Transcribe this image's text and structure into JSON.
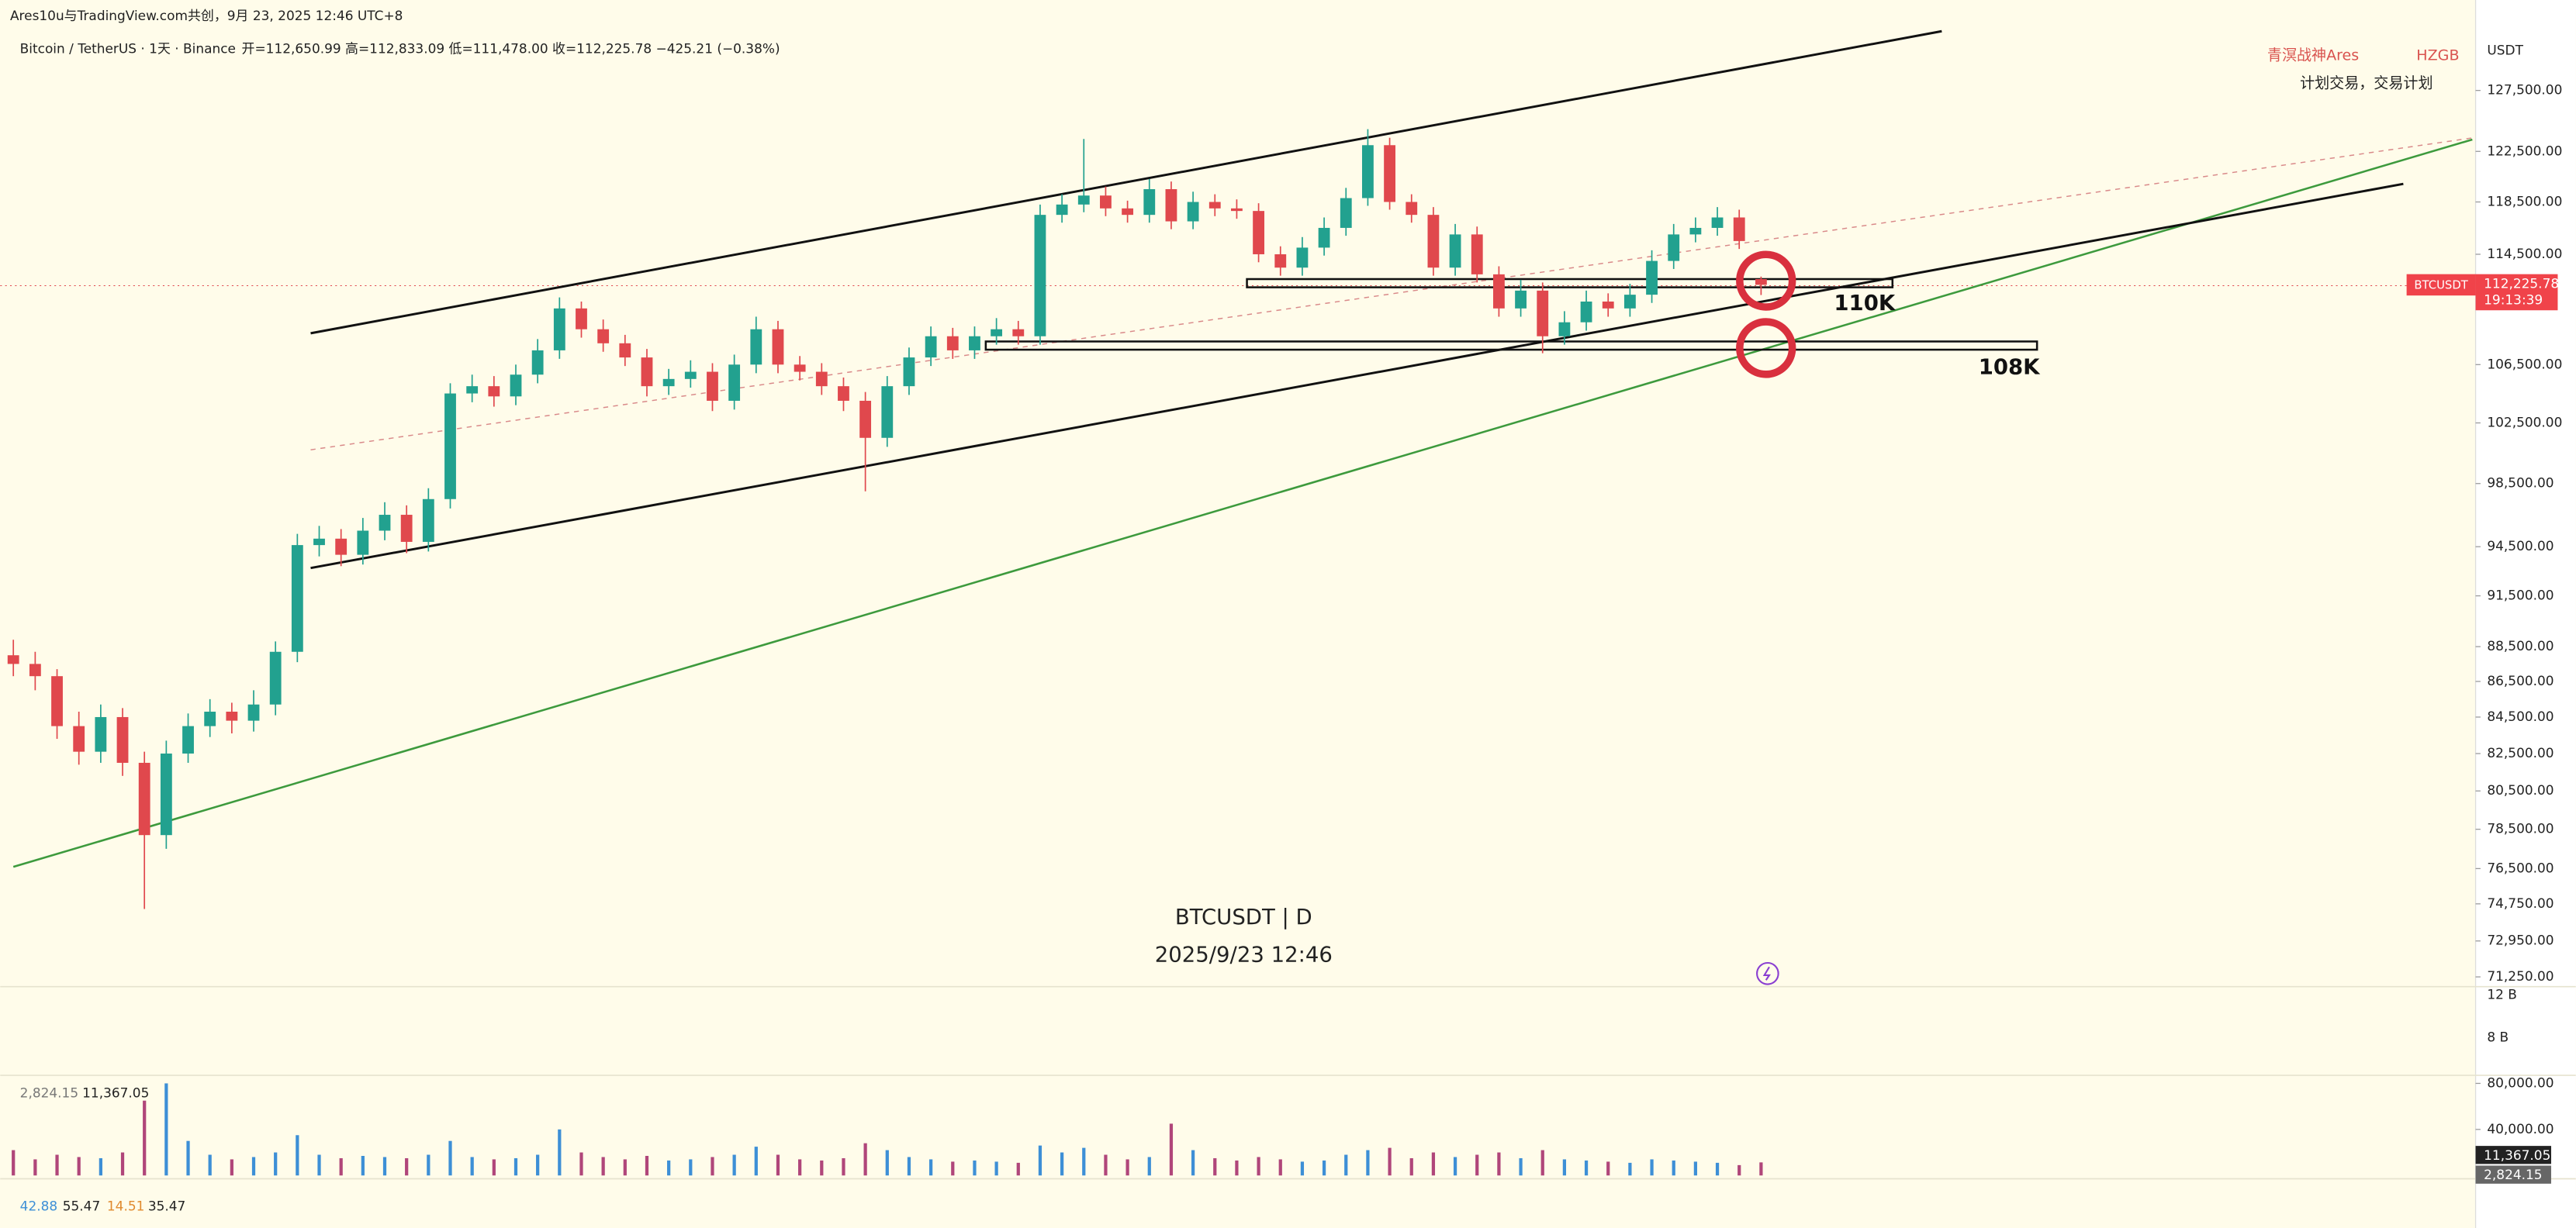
{
  "header": {
    "source": "Ares10u与TradingView.com共创，9月 23, 2025 12:46 UTC+8",
    "symbol_line": "Bitcoin / TetherUS · 1天 · Binance",
    "ohlc": "开=112,650.99 高=112,833.09 低=111,478.00 收=112,225.78 −425.21 (−0.38%)"
  },
  "branding": {
    "author": "青溟战神Ares",
    "tag": "HZGB",
    "motto": "计划交易，交易计划"
  },
  "watermark": {
    "symbol": "BTCUSDT | D",
    "time": "2025/9/23 12:46"
  },
  "price_axis": {
    "currency": "USDT",
    "tag_symbol": "BTCUSDT",
    "tag_price": "112,225.78",
    "tag_countdown": "19:13:39"
  },
  "chart_data": {
    "type": "candlestick",
    "log_scale": true,
    "up_color": "#22a18f",
    "down_color": "#e0484d",
    "annotations": [
      "110K",
      "108K"
    ],
    "ylim": [
      70870,
      132700
    ],
    "yticks": [
      {
        "value": 127500,
        "label": "127,500.00"
      },
      {
        "value": 122500,
        "label": "122,500.00"
      },
      {
        "value": 118500,
        "label": "118,500.00"
      },
      {
        "value": 114500,
        "label": "114,500.00"
      },
      {
        "value": 106500,
        "label": "106,500.00"
      },
      {
        "value": 102500,
        "label": "102,500.00"
      },
      {
        "value": 98500,
        "label": "98,500.00"
      },
      {
        "value": 94500,
        "label": "94,500.00"
      },
      {
        "value": 91500,
        "label": "91,500.00"
      },
      {
        "value": 88500,
        "label": "88,500.00"
      },
      {
        "value": 86500,
        "label": "86,500.00"
      },
      {
        "value": 84500,
        "label": "84,500.00"
      },
      {
        "value": 82500,
        "label": "82,500.00"
      },
      {
        "value": 80500,
        "label": "80,500.00"
      },
      {
        "value": 78500,
        "label": "78,500.00"
      },
      {
        "value": 76500,
        "label": "76,500.00"
      },
      {
        "value": 74750,
        "label": "74,750.00"
      },
      {
        "value": 72950,
        "label": "72,950.00"
      },
      {
        "value": 71250,
        "label": "71,250.00"
      }
    ],
    "candles": [
      [
        88000,
        88900,
        86800,
        87500
      ],
      [
        87500,
        88200,
        86000,
        86800
      ],
      [
        86800,
        87200,
        83300,
        84000
      ],
      [
        84000,
        84800,
        81900,
        82600
      ],
      [
        82600,
        85200,
        82000,
        84500
      ],
      [
        84500,
        85000,
        81300,
        82000
      ],
      [
        82000,
        82600,
        74500,
        78200
      ],
      [
        78200,
        83200,
        77500,
        82500
      ],
      [
        82500,
        84700,
        82000,
        84000
      ],
      [
        84000,
        85500,
        83400,
        84800
      ],
      [
        84800,
        85300,
        83600,
        84300
      ],
      [
        84300,
        86000,
        83700,
        85200
      ],
      [
        85200,
        88800,
        84600,
        88200
      ],
      [
        88200,
        95300,
        87600,
        94600
      ],
      [
        94600,
        95800,
        93900,
        95000
      ],
      [
        95000,
        95600,
        93300,
        94000
      ],
      [
        94000,
        96300,
        93400,
        95500
      ],
      [
        95500,
        97300,
        94900,
        96500
      ],
      [
        96500,
        97100,
        94100,
        94800
      ],
      [
        94800,
        98200,
        94200,
        97500
      ],
      [
        97500,
        105200,
        96900,
        104500
      ],
      [
        104500,
        105800,
        103900,
        105000
      ],
      [
        105000,
        105700,
        103600,
        104300
      ],
      [
        104300,
        106500,
        103700,
        105800
      ],
      [
        105800,
        108300,
        105200,
        107500
      ],
      [
        107500,
        111300,
        106900,
        110500
      ],
      [
        110500,
        111000,
        108400,
        109000
      ],
      [
        109000,
        109700,
        107400,
        108000
      ],
      [
        108000,
        108600,
        106400,
        107000
      ],
      [
        107000,
        107600,
        104300,
        105000
      ],
      [
        105000,
        106200,
        104400,
        105500
      ],
      [
        105500,
        106800,
        104900,
        106000
      ],
      [
        106000,
        106600,
        103300,
        104000
      ],
      [
        104000,
        107200,
        103400,
        106500
      ],
      [
        106500,
        109900,
        105900,
        109000
      ],
      [
        109000,
        109600,
        105900,
        106500
      ],
      [
        106500,
        107100,
        105400,
        106000
      ],
      [
        106000,
        106600,
        104400,
        105000
      ],
      [
        105000,
        105600,
        103300,
        104000
      ],
      [
        104000,
        104600,
        98000,
        101500
      ],
      [
        101500,
        105700,
        100900,
        105000
      ],
      [
        105000,
        107700,
        104400,
        107000
      ],
      [
        107000,
        109200,
        106400,
        108500
      ],
      [
        108500,
        109100,
        106900,
        107500
      ],
      [
        107500,
        109200,
        106900,
        108500
      ],
      [
        108500,
        109800,
        107900,
        109000
      ],
      [
        109000,
        109600,
        107900,
        108500
      ],
      [
        108500,
        118300,
        107900,
        117500
      ],
      [
        117500,
        119100,
        116900,
        118300
      ],
      [
        118300,
        123500,
        117700,
        119000
      ],
      [
        119000,
        119700,
        117400,
        118000
      ],
      [
        118000,
        118600,
        116900,
        117500
      ],
      [
        117500,
        120300,
        116900,
        119500
      ],
      [
        119500,
        120100,
        116400,
        117000
      ],
      [
        117000,
        119300,
        116400,
        118500
      ],
      [
        118500,
        119100,
        117400,
        118000
      ],
      [
        118000,
        118700,
        117200,
        117800
      ],
      [
        117800,
        118400,
        113900,
        114500
      ],
      [
        114500,
        115100,
        112900,
        113500
      ],
      [
        113500,
        115800,
        112900,
        115000
      ],
      [
        115000,
        117300,
        114400,
        116500
      ],
      [
        116500,
        119600,
        115900,
        118800
      ],
      [
        118800,
        124300,
        118200,
        123000
      ],
      [
        123000,
        123600,
        117900,
        118500
      ],
      [
        118500,
        119100,
        116900,
        117500
      ],
      [
        117500,
        118100,
        112900,
        113500
      ],
      [
        113500,
        116800,
        112900,
        116000
      ],
      [
        116000,
        116600,
        112400,
        113000
      ],
      [
        113000,
        113600,
        109900,
        110500
      ],
      [
        110500,
        112600,
        109900,
        111800
      ],
      [
        111800,
        112400,
        107300,
        108500
      ],
      [
        108500,
        110300,
        107900,
        109500
      ],
      [
        109500,
        111800,
        108900,
        111000
      ],
      [
        111000,
        111600,
        109900,
        110500
      ],
      [
        110500,
        112300,
        109900,
        111500
      ],
      [
        111500,
        114800,
        110900,
        114000
      ],
      [
        114000,
        116800,
        113400,
        116000
      ],
      [
        116000,
        117300,
        115400,
        116500
      ],
      [
        116500,
        118100,
        115900,
        117300
      ],
      [
        117300,
        117900,
        114900,
        115500
      ],
      [
        112650.99,
        112833.09,
        111478,
        112225.78
      ]
    ]
  },
  "volume_pane": {
    "up_color": "#3d8fd6",
    "down_color": "#b0467a",
    "ylim": [
      0,
      87000
    ],
    "yticks": [
      {
        "value": 80000,
        "label": "80,000.00"
      },
      {
        "value": 40000,
        "label": "40,000.00"
      }
    ],
    "legend": [
      "2,824.15",
      "11,367.05"
    ],
    "tags": [
      "11,367.05",
      "2,824.15"
    ],
    "values": [
      22000,
      14000,
      18000,
      16000,
      15000,
      20000,
      65000,
      80000,
      30000,
      18000,
      14000,
      16000,
      20000,
      35000,
      18000,
      15000,
      17000,
      16000,
      15000,
      18000,
      30000,
      16000,
      14000,
      15000,
      18000,
      40000,
      20000,
      16000,
      14000,
      17000,
      13000,
      14000,
      16000,
      18000,
      25000,
      18000,
      14000,
      13000,
      15000,
      28000,
      22000,
      16000,
      14000,
      12000,
      13000,
      12000,
      11000,
      26000,
      20000,
      24000,
      18000,
      14000,
      16000,
      45000,
      22000,
      15000,
      13000,
      16000,
      14000,
      12000,
      13000,
      18000,
      22000,
      24000,
      15000,
      20000,
      16000,
      18000,
      20000,
      15000,
      22000,
      14000,
      13000,
      12000,
      11000,
      14000,
      13000,
      12000,
      11000,
      9000,
      11367.05
    ]
  },
  "middle_pane": {
    "labels": [
      "12 B",
      "8 B"
    ]
  },
  "indicator_pane": {
    "legend": [
      "42.88",
      "55.47",
      "14.51",
      "35.47"
    ]
  }
}
